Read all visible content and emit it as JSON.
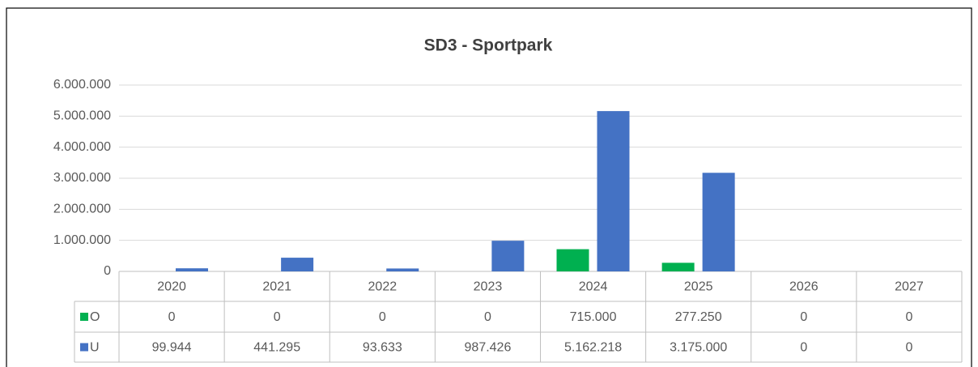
{
  "chart_data": {
    "type": "bar",
    "title": "SD3 - Sportpark",
    "categories": [
      "2020",
      "2021",
      "2022",
      "2023",
      "2024",
      "2025",
      "2026",
      "2027"
    ],
    "series": [
      {
        "name": "O",
        "color": "#00b050",
        "values": [
          0,
          0,
          0,
          0,
          715000,
          277250,
          0,
          0
        ],
        "value_labels": [
          "0",
          "0",
          "0",
          "0",
          "715.000",
          "277.250",
          "0",
          "0"
        ]
      },
      {
        "name": "U",
        "color": "#4472c4",
        "values": [
          99944,
          441295,
          93633,
          987426,
          5162218,
          3175000,
          0,
          0
        ],
        "value_labels": [
          "99.944",
          "441.295",
          "93.633",
          "987.426",
          "5.162.218",
          "3.175.000",
          "0",
          "0"
        ]
      }
    ],
    "ylim": [
      0,
      6000000
    ],
    "yticks": [
      0,
      {
        "value": 1000000,
        "label": "1.000.000"
      },
      {
        "value": 2000000,
        "label": "2.000.000"
      },
      {
        "value": 3000000,
        "label": "3.000.000"
      },
      {
        "value": 4000000,
        "label": "4.000.000"
      },
      {
        "value": 5000000,
        "label": "5.000.000"
      },
      {
        "value": 6000000,
        "label": "6.000.000"
      }
    ],
    "grid": true
  }
}
